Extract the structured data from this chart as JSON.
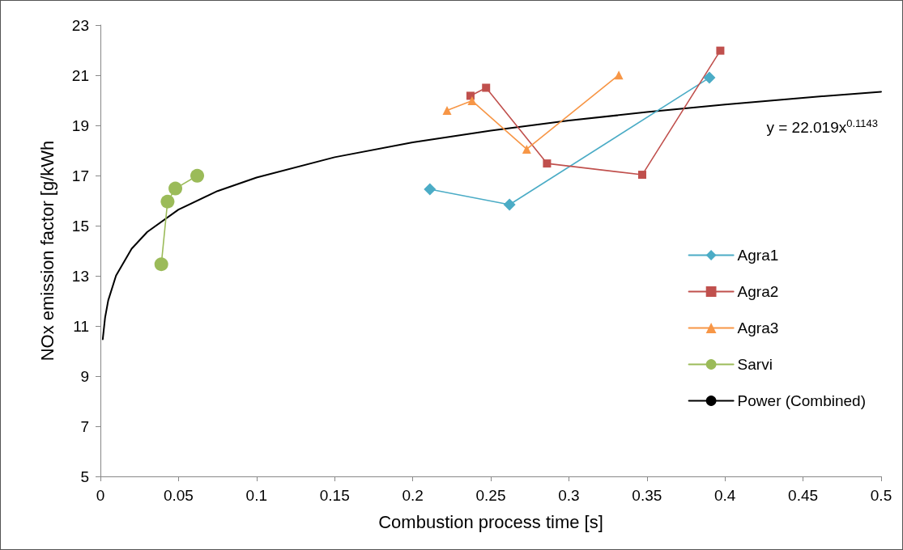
{
  "chart_data": {
    "type": "line",
    "xlabel": "Combustion process time [s]",
    "ylabel": "NOx emission factor [g/kWh",
    "xlim": [
      0,
      0.5
    ],
    "xticks": [
      0,
      0.05,
      0.1,
      0.15,
      0.2,
      0.25,
      0.3,
      0.35,
      0.4,
      0.45,
      0.5
    ],
    "ylim": [
      5,
      23
    ],
    "yticks": [
      5,
      7,
      9,
      11,
      13,
      15,
      17,
      19,
      21,
      23
    ],
    "grid": false,
    "legend": "right",
    "line_style": "solid",
    "annotations": [
      "y = 22.019x$^{0.1143}$"
    ],
    "series": [
      {
        "name": "Agra1",
        "color": "#4bacc6",
        "marker": "diamond",
        "x": [
          0.211,
          0.262,
          0.39
        ],
        "values": [
          16.45,
          15.84,
          20.9
        ]
      },
      {
        "name": "Agra2",
        "color": "#c0504d",
        "marker": "square",
        "x": [
          0.237,
          0.247,
          0.286,
          0.347,
          0.397
        ],
        "values": [
          20.18,
          20.5,
          17.48,
          17.03,
          21.98
        ]
      },
      {
        "name": "Agra3",
        "color": "#f79646",
        "marker": "triangle",
        "x": [
          0.222,
          0.238,
          0.273,
          0.332
        ],
        "values": [
          19.6,
          19.98,
          18.05,
          21.01
        ]
      },
      {
        "name": "Sarvi",
        "color": "#9bbb59",
        "marker": "circle",
        "x": [
          0.039,
          0.043,
          0.048,
          0.062
        ],
        "values": [
          13.46,
          15.96,
          16.48,
          16.99
        ]
      },
      {
        "name": "Power (Combined)",
        "color": "#000000",
        "marker": "none",
        "x": [
          0.0015,
          0.003,
          0.005,
          0.01,
          0.02,
          0.03,
          0.05,
          0.075,
          0.1,
          0.15,
          0.2,
          0.25,
          0.3,
          0.35,
          0.4,
          0.45,
          0.5
        ],
        "values": [
          10.47,
          11.34,
          12.02,
          13.01,
          14.08,
          14.75,
          15.64,
          16.38,
          16.92,
          17.73,
          18.32,
          18.79,
          19.19,
          19.53,
          19.83,
          20.1,
          20.34
        ]
      }
    ]
  }
}
